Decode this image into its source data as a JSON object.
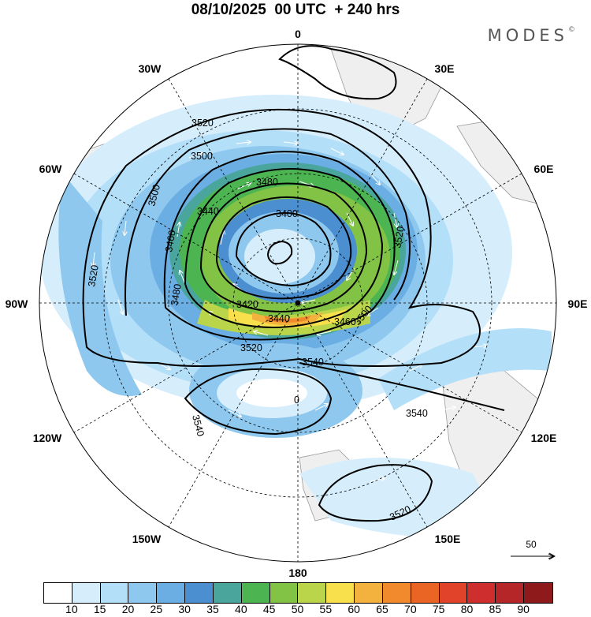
{
  "title": "08/10/2025  00 UTC  + 240 hrs",
  "brand": "MODES",
  "brand_mark": "©",
  "longitude_labels": {
    "deg0": "0",
    "deg30e": "30E",
    "deg60e": "60E",
    "deg90e": "90E",
    "deg120e": "120E",
    "deg150e": "150E",
    "deg180": "180",
    "deg150w": "150W",
    "deg120w": "120W",
    "deg90w": "90W",
    "deg60w": "60W",
    "deg30w": "30W"
  },
  "contour_labels": {
    "c1": "3520",
    "c2": "3500",
    "c3": "3480",
    "c4": "3460",
    "c5": "3440",
    "c6": "3400",
    "c7": "3500",
    "c8": "3460",
    "c9": "3520",
    "c10": "3500",
    "c11": "3420",
    "c12": "3480",
    "c13": "3440",
    "c14": "3520",
    "c15": "3540",
    "c16": "3540",
    "c17": "3540",
    "c18": "3520",
    "c19": "3520"
  },
  "low_marker": "0",
  "reference_vector": {
    "label": "50"
  },
  "colorbar": {
    "colors": [
      "#ffffff",
      "#d6eefc",
      "#b4dff8",
      "#8ec8ee",
      "#6aaee4",
      "#4b8fd0",
      "#4aa59c",
      "#4cb552",
      "#82c346",
      "#bad54a",
      "#f8e04c",
      "#f3b23e",
      "#f08a2c",
      "#ea6524",
      "#e0432a",
      "#cf2e2e",
      "#b52628",
      "#8f1a1c"
    ],
    "ticks": [
      "10",
      "15",
      "20",
      "25",
      "30",
      "35",
      "40",
      "45",
      "50",
      "55",
      "60",
      "65",
      "70",
      "75",
      "80",
      "85",
      "90"
    ]
  },
  "chart_data": {
    "type": "polar-stereographic map",
    "title": "08/10/2025  00 UTC  + 240 hrs",
    "projection": "south polar stereographic",
    "fields": [
      "wind speed (shaded)",
      "geopotential height contours",
      "wind vectors"
    ],
    "contour_values": [
      3400,
      3420,
      3440,
      3460,
      3480,
      3500,
      3520,
      3540
    ],
    "colorbar_levels": [
      10,
      15,
      20,
      25,
      30,
      35,
      40,
      45,
      50,
      55,
      60,
      65,
      70,
      75,
      80,
      85,
      90
    ],
    "reference_vector": 50
  }
}
